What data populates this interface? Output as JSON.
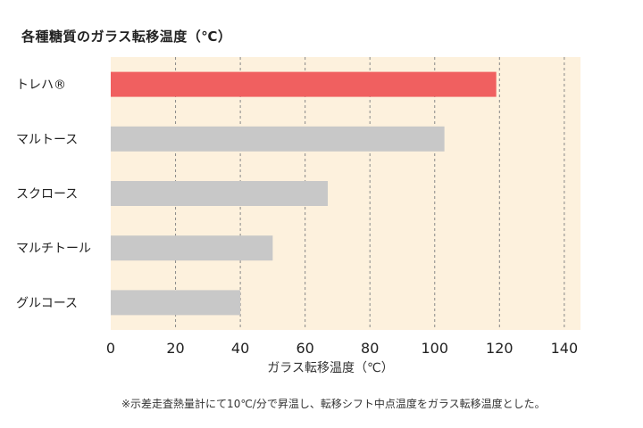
{
  "chart_data": {
    "type": "bar",
    "orientation": "horizontal",
    "title": "各種糖質のガラス転移温度（℃）",
    "xlabel": "ガラス転移温度（℃）",
    "ylabel": "",
    "categories": [
      "トレハ®",
      "マルトース",
      "スクロース",
      "マルチトール",
      "グルコース"
    ],
    "values": [
      119,
      103,
      67,
      50,
      40
    ],
    "highlight_index": 0,
    "xlim": [
      0,
      145
    ],
    "xticks": [
      0,
      20,
      40,
      60,
      80,
      100,
      120,
      140
    ],
    "grid": "vertical-dashed",
    "colors": {
      "highlight": "#f06060",
      "bar": "#c8c8c8",
      "plot_bg": "#fdf1dd",
      "grid": "#888888"
    },
    "footnote": "※示差走査熱量計にて10℃/分で昇温し、転移シフト中点温度をガラス転移温度とした。"
  }
}
